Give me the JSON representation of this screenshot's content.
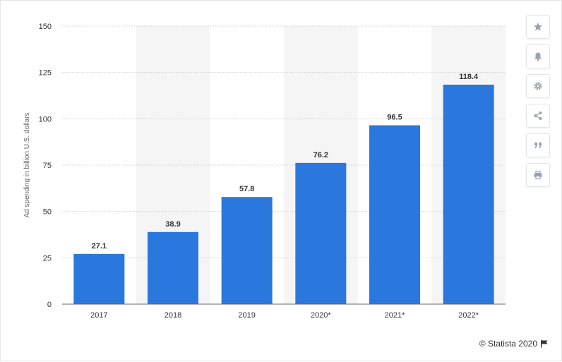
{
  "chart_data": {
    "type": "bar",
    "categories": [
      "2017",
      "2018",
      "2019",
      "2020*",
      "2021*",
      "2022*"
    ],
    "values": [
      27.1,
      38.9,
      57.8,
      76.2,
      96.5,
      118.4
    ],
    "value_labels": [
      "27.1",
      "38.9",
      "57.8",
      "76.2",
      "96.5",
      "118.4"
    ],
    "title": "",
    "xlabel": "",
    "ylabel": "Ad spending in billion U.S. dollars",
    "ylim": [
      0,
      150
    ],
    "yticks": [
      0,
      25,
      50,
      75,
      100,
      125,
      150
    ],
    "ytick_labels": [
      "0",
      "25",
      "50",
      "75",
      "100",
      "125",
      "150"
    ],
    "grid": true,
    "bar_color": "#2a78de",
    "band_color": "#f5f5f5",
    "grid_color": "#cccccc"
  },
  "toolbar": {
    "items": [
      {
        "icon": "star-icon"
      },
      {
        "icon": "bell-icon"
      },
      {
        "icon": "gear-icon"
      },
      {
        "icon": "share-icon"
      },
      {
        "icon": "quote-icon"
      },
      {
        "icon": "print-icon"
      }
    ],
    "icon_color": "#9aa3ad"
  },
  "credit": {
    "text": "© Statista 2020",
    "icon": "flag-icon"
  }
}
